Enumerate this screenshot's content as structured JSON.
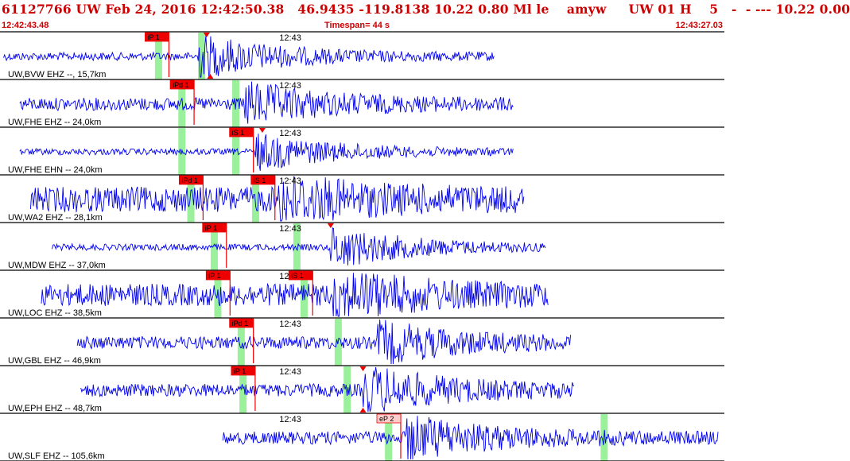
{
  "header": {
    "event_line": "61127766 UW Feb 24, 2016 12:42:50.38   46.9435 -119.8138 10.22 0.80 Ml le    amyw     UW 01 H    5   -  - --- 10.22 0.00",
    "start_time": "12:42:43.48",
    "timespan": "Timespan=  44 s",
    "end_time": "12:43:27.03"
  },
  "colors": {
    "trace": "#0000ee",
    "pick_flag": "#ee0000",
    "pick_flag_hollow": "#ffcccc",
    "window": "#90ee90",
    "header_text": "#cc0000"
  },
  "chart_data": {
    "type": "line",
    "xlabel": "",
    "ylabel": "",
    "minute_label": "12:43",
    "traces": [
      {
        "label": "UW,BVW EHZ --, 15,7km",
        "start": 0.2,
        "end": 27.5,
        "amp": 5,
        "burst_at": 11.0,
        "burst_amp": 26,
        "windows": [
          8.8,
          11.2
        ],
        "picks": [
          {
            "t": 9.4,
            "label": "iP 1",
            "solid": true
          }
        ],
        "triangles": [
          {
            "t": 11.5,
            "pos": "top"
          },
          {
            "t": 11.7,
            "pos": "bottom"
          }
        ]
      },
      {
        "label": "UW,FHE EHZ -- 24,0km",
        "start": 1.1,
        "end": 28.6,
        "amp": 8,
        "burst_at": 13.6,
        "burst_amp": 24,
        "windows": [
          10.1,
          13.1
        ],
        "picks": [
          {
            "t": 10.8,
            "label": "iPd 1",
            "solid": true
          }
        ],
        "triangles": []
      },
      {
        "label": "UW,FHE EHN -- 24,0km",
        "start": 1.1,
        "end": 28.6,
        "amp": 4,
        "burst_at": 14.2,
        "burst_amp": 22,
        "windows": [
          10.1,
          13.1
        ],
        "picks": [
          {
            "t": 14.1,
            "label": "iS 1",
            "solid": true
          }
        ],
        "triangles": [
          {
            "t": 14.6,
            "pos": "top"
          }
        ]
      },
      {
        "label": "UW,WA2 EHZ -- 28,1km",
        "start": 1.7,
        "end": 29.2,
        "amp": 16,
        "burst_at": 15.3,
        "burst_amp": 24,
        "windows": [
          10.6,
          14.2
        ],
        "picks": [
          {
            "t": 11.3,
            "label": "iPd 1",
            "solid": true
          },
          {
            "t": 15.3,
            "label": "iS 1",
            "solid": true
          }
        ],
        "triangles": []
      },
      {
        "label": "UW,MDW EHZ -- 37,0km",
        "start": 2.9,
        "end": 30.4,
        "amp": 4,
        "burst_at": 18.3,
        "burst_amp": 26,
        "windows": [
          11.9,
          16.5
        ],
        "picks": [
          {
            "t": 12.6,
            "label": "iP 1",
            "solid": true
          }
        ],
        "triangles": [
          {
            "t": 18.4,
            "pos": "top"
          }
        ]
      },
      {
        "label": "UW,LOC EHZ -- 38,5km",
        "start": 2.3,
        "end": 30.5,
        "amp": 14,
        "burst_at": 18.5,
        "burst_amp": 26,
        "windows": [
          12.1,
          16.9
        ],
        "picks": [
          {
            "t": 12.8,
            "label": "iP 1",
            "solid": true
          },
          {
            "t": 17.4,
            "label": "iS 1",
            "solid": true
          }
        ],
        "triangles": []
      },
      {
        "label": "UW,GBL EHZ -- 46,9km",
        "start": 4.3,
        "end": 31.8,
        "amp": 8,
        "burst_at": 21.0,
        "burst_amp": 24,
        "windows": [
          13.4,
          18.8
        ],
        "picks": [
          {
            "t": 14.1,
            "label": "iPd 1",
            "solid": true
          }
        ],
        "triangles": []
      },
      {
        "label": "UW,EPH EHZ -- 48,7km",
        "start": 4.5,
        "end": 32.0,
        "amp": 8,
        "burst_at": 20.2,
        "burst_amp": 28,
        "windows": [
          13.5,
          19.3
        ],
        "picks": [
          {
            "t": 14.2,
            "label": "iP 1",
            "solid": true
          }
        ],
        "triangles": [
          {
            "t": 20.2,
            "pos": "top"
          },
          {
            "t": 20.2,
            "pos": "bottom"
          }
        ]
      },
      {
        "label": "UW,SLF EHZ -- 105,6km",
        "start": 12.4,
        "end": 40.0,
        "amp": 8,
        "burst_at": 22.5,
        "burst_amp": 26,
        "windows": [
          21.6,
          33.6
        ],
        "picks": [
          {
            "t": 22.3,
            "label": "eP 2",
            "solid": false
          }
        ],
        "triangles": []
      }
    ]
  }
}
